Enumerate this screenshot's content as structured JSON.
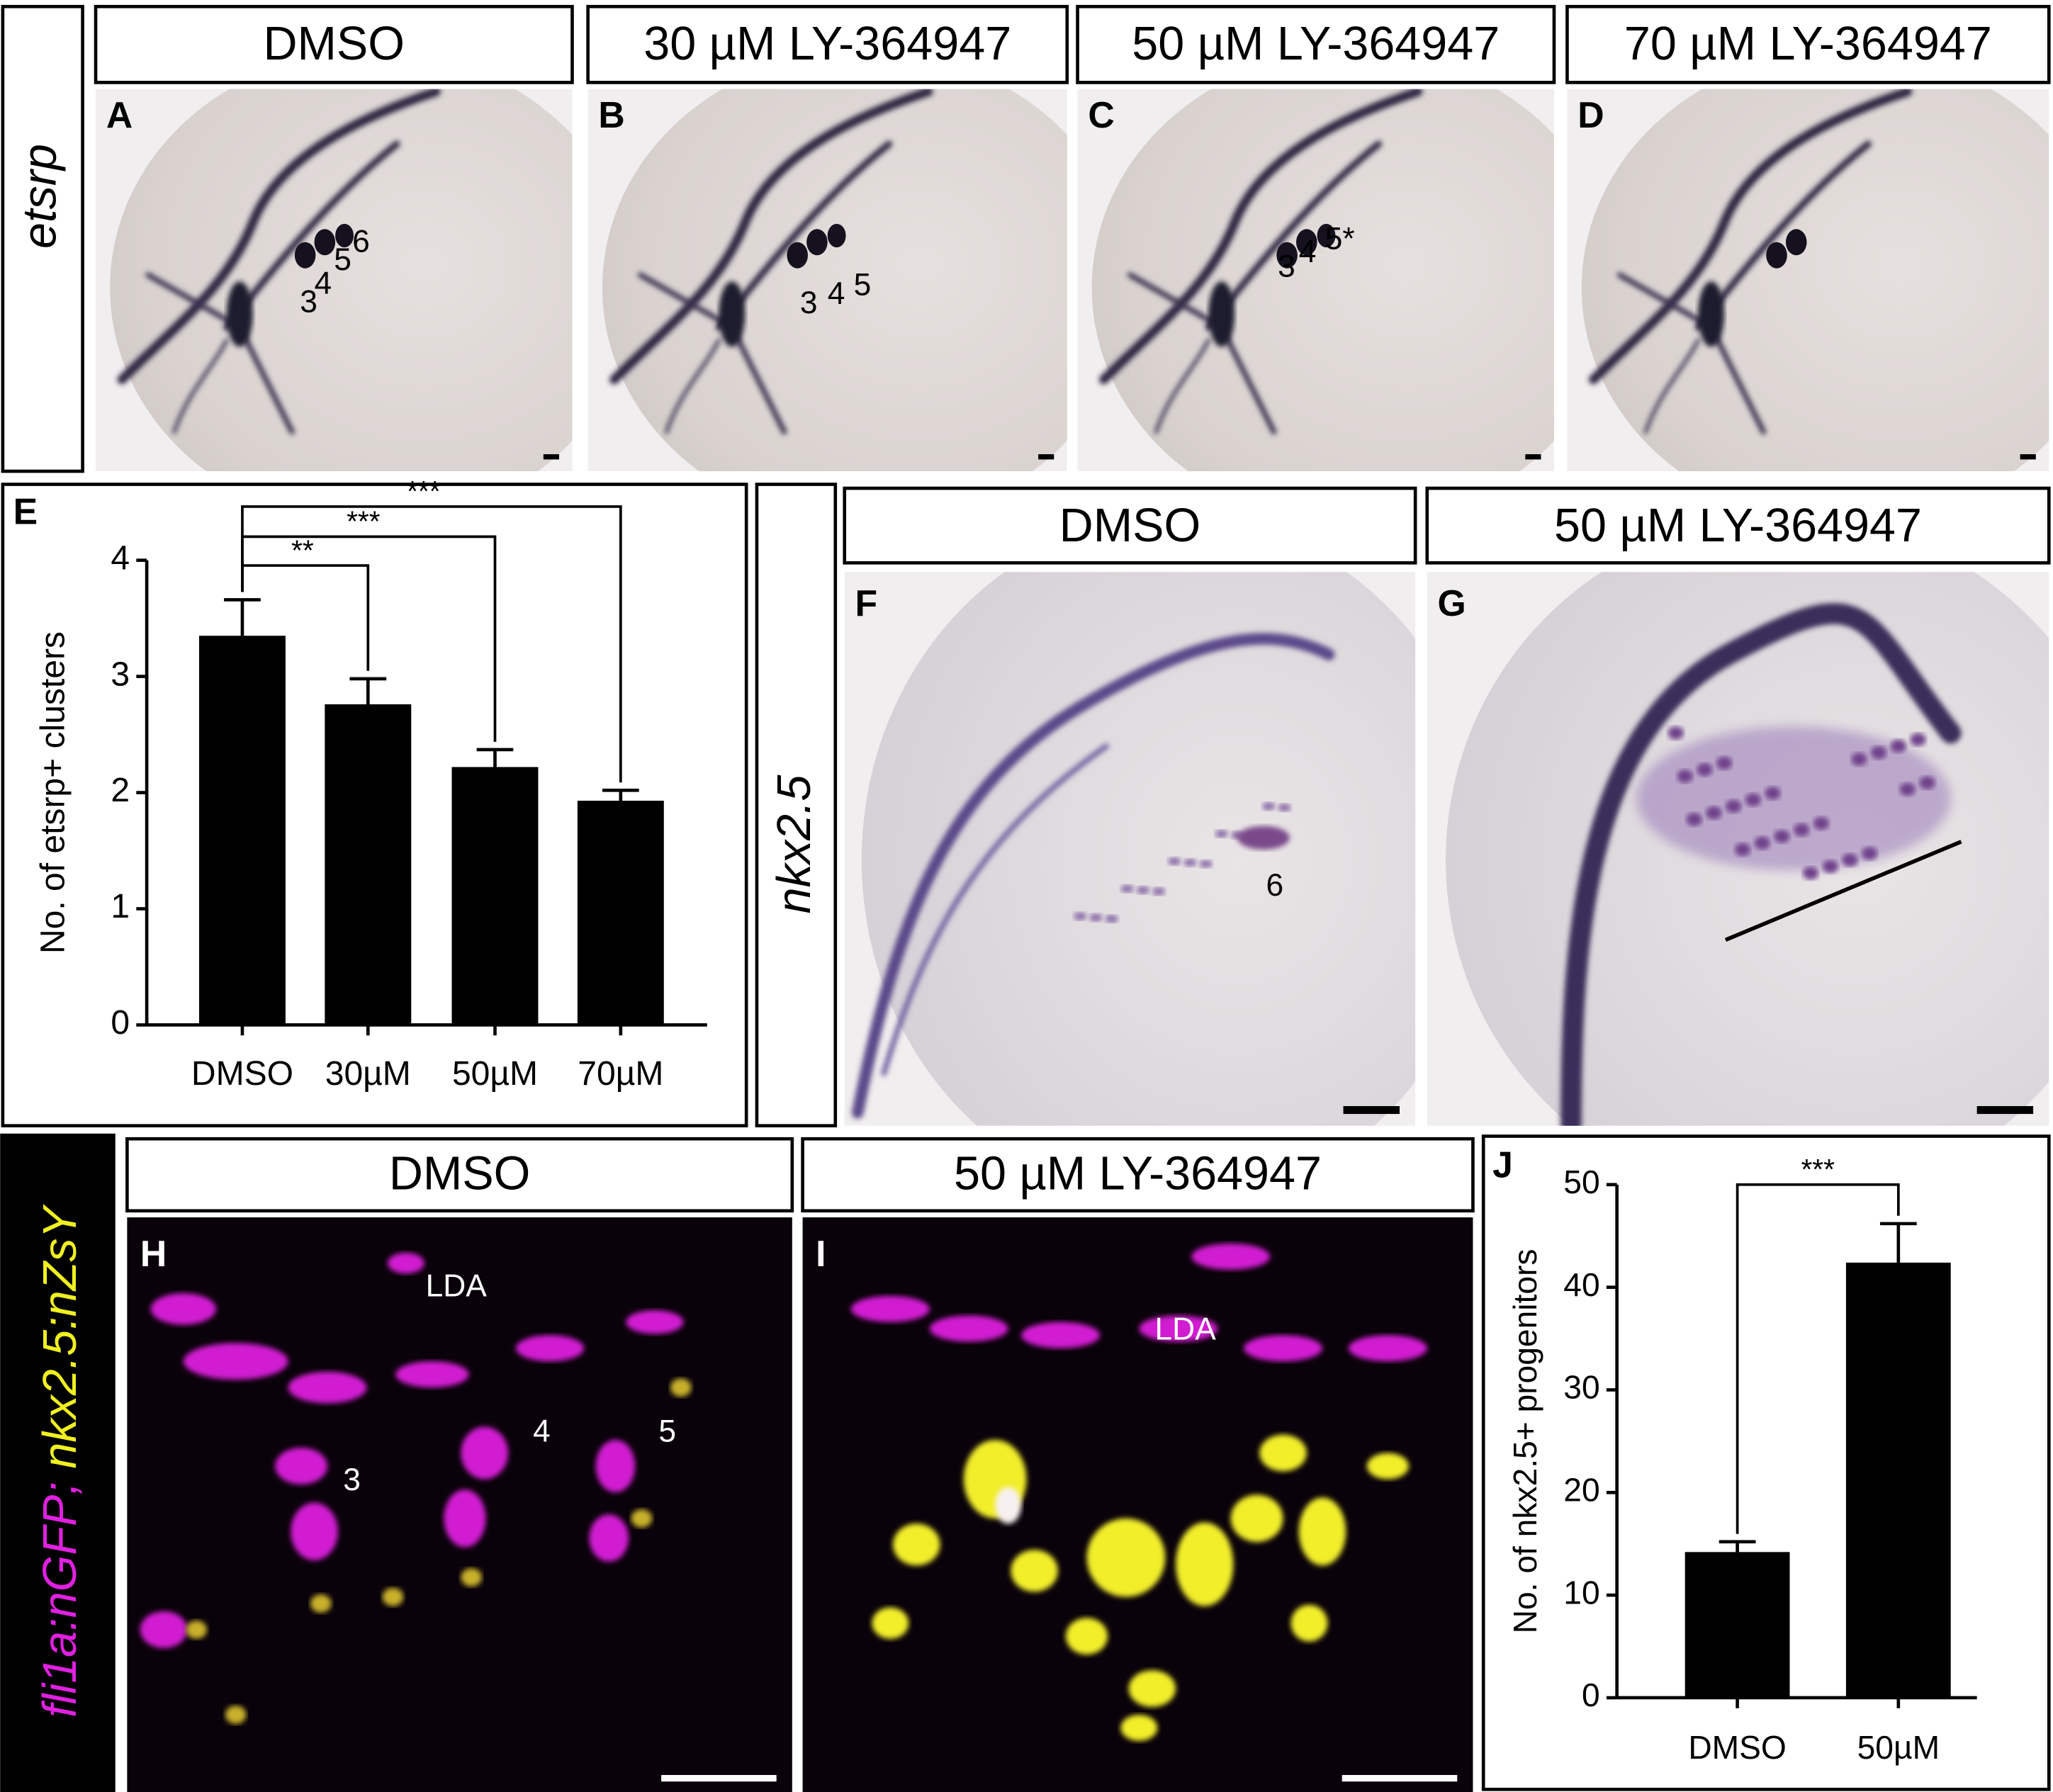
{
  "panels": {
    "row1": {
      "row_label": "etsrp",
      "headers": [
        "DMSO",
        "30 µM LY-364947",
        "50 µM LY-364947",
        "70 µM LY-364947"
      ],
      "letters": [
        "A",
        "B",
        "C",
        "D"
      ],
      "annotations": [
        [
          "3",
          "4",
          "5",
          "6"
        ],
        [
          "3",
          "4",
          "5"
        ],
        [
          "3",
          "4",
          "5*"
        ],
        []
      ]
    },
    "row2": {
      "row_label": "nkx2.5",
      "headers": [
        "DMSO",
        "50 µM LY-364947"
      ],
      "letters": [
        "F",
        "G"
      ],
      "annotations": [
        [
          "6"
        ],
        []
      ]
    },
    "row3": {
      "row_label_parts": [
        "fli1a:nGFP",
        ";",
        "nkx2.5:nZsY"
      ],
      "headers": [
        "DMSO",
        "50 µM LY-364947"
      ],
      "letters": [
        "H",
        "I"
      ],
      "annotations": [
        [
          "LDA",
          "3",
          "4",
          "5"
        ],
        [
          "LDA"
        ]
      ]
    }
  },
  "chart_data": [
    {
      "type": "bar",
      "letter": "E",
      "ylabel": "No. of etsrp+ clusters",
      "categories": [
        "DMSO",
        "30µM",
        "50µM",
        "70µM"
      ],
      "values": [
        3.35,
        2.76,
        2.22,
        1.93
      ],
      "errors": [
        0.31,
        0.22,
        0.15,
        0.09
      ],
      "significance": [
        "**",
        "***",
        "***"
      ],
      "color": "#000000",
      "ylim": [
        0,
        4
      ],
      "yticks": [
        0,
        1,
        2,
        3,
        4
      ]
    },
    {
      "type": "bar",
      "letter": "J",
      "ylabel": "No. of nkx2.5+ progenitors",
      "categories": [
        "DMSO",
        "50µM"
      ],
      "values": [
        14.2,
        42.4
      ],
      "errors": [
        1.0,
        3.8
      ],
      "significance": [
        "***"
      ],
      "color": "#000000",
      "ylim": [
        0,
        50
      ],
      "yticks": [
        0,
        10,
        20,
        30,
        40,
        50
      ]
    }
  ]
}
